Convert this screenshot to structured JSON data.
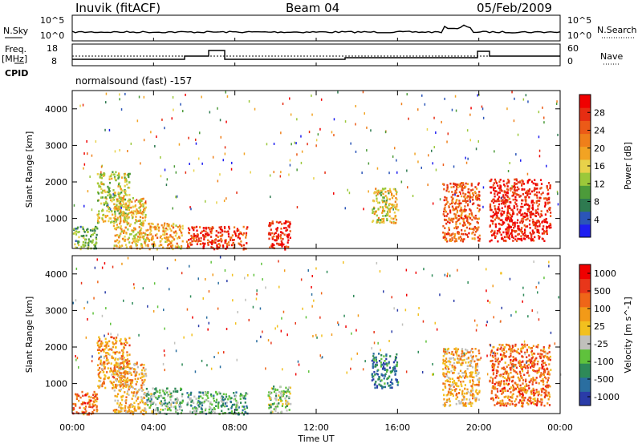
{
  "header": {
    "station": "Inuvik (fitACF)",
    "beam": "Beam 04",
    "date": "05/Feb/2009"
  },
  "strip": {
    "nsky_label": "N.Sky",
    "nsky_ticks": [
      "10^5",
      "10^0"
    ],
    "nsearch_label": "N.Search",
    "nsearch_ticks": [
      "10^5",
      "10^0"
    ],
    "freq_label": "Freq.",
    "freq_unit": "[MHz]",
    "freq_ticks": [
      "18",
      "8"
    ],
    "nave_label": "Nave",
    "nave_ticks": [
      "60",
      "0"
    ],
    "cpid_label": "CPID",
    "cpid_text": "normalsound (fast) -157"
  },
  "chart_data": [
    {
      "type": "heatmap",
      "title": "",
      "xlabel": "Time UT",
      "ylabel": "Slant Range [km]",
      "x_ticks": [
        "00:00",
        "04:00",
        "08:00",
        "12:00",
        "16:00",
        "20:00",
        "00:00"
      ],
      "xlim_hours": [
        0,
        24
      ],
      "ylim_km": [
        180,
        4500
      ],
      "y_ticks": [
        1000,
        2000,
        3000,
        4000
      ],
      "colorbar": {
        "label": "Power [dB]",
        "ticks": [
          "4",
          "8",
          "12",
          "16",
          "20",
          "24",
          "28"
        ],
        "range": [
          0,
          30
        ],
        "colors": [
          "#1e1ef0",
          "#2b55b8",
          "#2e7a50",
          "#4c9b3a",
          "#9bc83a",
          "#e8d24a",
          "#f2a323",
          "#ef7f1a",
          "#ec5a17",
          "#e62d12",
          "#f00000"
        ]
      },
      "patches": [
        {
          "t0": 0.0,
          "t1": 1.2,
          "r0": 180,
          "r1": 800,
          "level": 0.35
        },
        {
          "t0": 1.2,
          "t1": 2.8,
          "r0": 900,
          "r1": 2300,
          "level": 0.45
        },
        {
          "t0": 2.0,
          "t1": 3.6,
          "r0": 180,
          "r1": 1600,
          "level": 0.55
        },
        {
          "t0": 3.6,
          "t1": 5.4,
          "r0": 180,
          "r1": 900,
          "level": 0.6
        },
        {
          "t0": 5.6,
          "t1": 8.6,
          "r0": 180,
          "r1": 800,
          "level": 0.85
        },
        {
          "t0": 9.6,
          "t1": 10.7,
          "r0": 180,
          "r1": 950,
          "level": 0.9
        },
        {
          "t0": 14.7,
          "t1": 16.0,
          "r0": 900,
          "r1": 1850,
          "level": 0.5
        },
        {
          "t0": 18.2,
          "t1": 20.0,
          "r0": 400,
          "r1": 2000,
          "level": 0.75
        },
        {
          "t0": 20.5,
          "t1": 23.5,
          "r0": 400,
          "r1": 2100,
          "level": 0.9
        }
      ]
    },
    {
      "type": "heatmap",
      "title": "",
      "xlabel": "Time UT",
      "ylabel": "Slant Range [km]",
      "x_ticks": [
        "00:00",
        "04:00",
        "08:00",
        "12:00",
        "16:00",
        "20:00",
        "00:00"
      ],
      "xlim_hours": [
        0,
        24
      ],
      "ylim_km": [
        180,
        4500
      ],
      "y_ticks": [
        1000,
        2000,
        3000,
        4000
      ],
      "colorbar": {
        "label": "Velocity [m s^-1]",
        "ticks": [
          "1000",
          "500",
          "100",
          "25",
          "-25",
          "-100",
          "-500",
          "-1000"
        ],
        "range": [
          -1000,
          1000
        ],
        "colors": [
          "#2a3ca8",
          "#2a6ea0",
          "#2e8a58",
          "#5fc23c",
          "#c0c0bc",
          "#f2c01e",
          "#f29a18",
          "#ef6618",
          "#e8361a",
          "#f00000"
        ]
      },
      "patches": [
        {
          "t0": 0.0,
          "t1": 1.2,
          "r0": 180,
          "r1": 800,
          "level": 0.75
        },
        {
          "t0": 1.2,
          "t1": 2.8,
          "r0": 900,
          "r1": 2300,
          "level": 0.65
        },
        {
          "t0": 2.0,
          "t1": 3.6,
          "r0": 180,
          "r1": 1600,
          "level": 0.6
        },
        {
          "t0": 3.6,
          "t1": 5.4,
          "r0": 180,
          "r1": 900,
          "level": 0.35
        },
        {
          "t0": 5.6,
          "t1": 8.6,
          "r0": 180,
          "r1": 800,
          "level": 0.3
        },
        {
          "t0": 9.6,
          "t1": 10.7,
          "r0": 180,
          "r1": 950,
          "level": 0.4
        },
        {
          "t0": 14.7,
          "t1": 16.0,
          "r0": 900,
          "r1": 1850,
          "level": 0.2
        },
        {
          "t0": 18.2,
          "t1": 20.0,
          "r0": 400,
          "r1": 2000,
          "level": 0.6
        },
        {
          "t0": 20.5,
          "t1": 23.5,
          "r0": 400,
          "r1": 2100,
          "level": 0.75
        }
      ]
    }
  ]
}
